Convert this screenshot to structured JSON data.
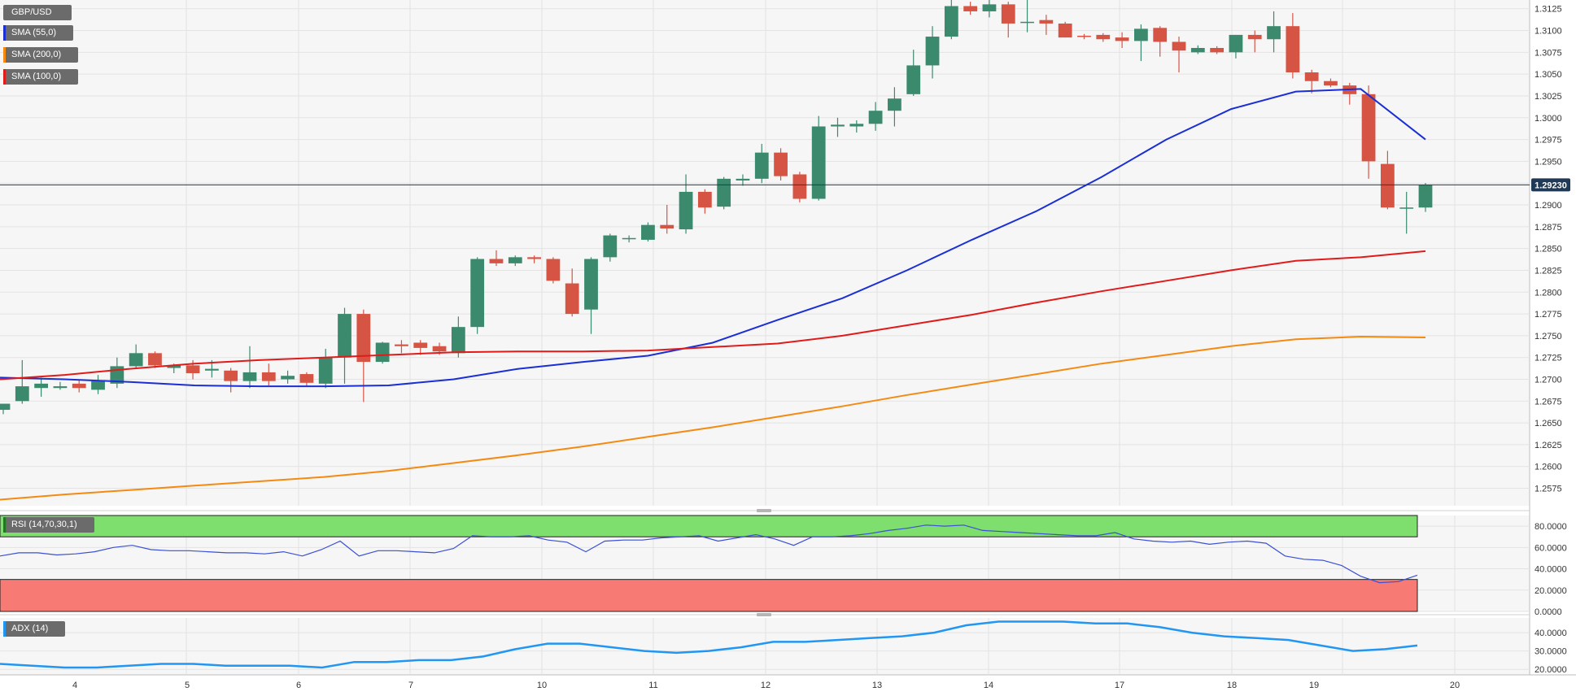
{
  "colors": {
    "bull": "#3b8a6e",
    "bear": "#d65444",
    "sma55": "#1a2fd4",
    "sma200": "#f48a12",
    "sma100": "#e11a1a",
    "rsi_line": "#3b50d4",
    "rsi_overbought": "#7ede6e",
    "rsi_oversold": "#f77b74",
    "adx_line": "#2196f3",
    "grid": "#e3e3e3",
    "plot_bg": "#f6f6f6",
    "price_tag_bg": "#1f3a57",
    "legend_bg": "#6b6b6b"
  },
  "legend": {
    "symbol": "GBP/USD",
    "sma55": "SMA (55,0)",
    "sma200": "SMA (200,0)",
    "sma100": "SMA (100,0)",
    "rsi": "RSI (14,70,30,1)",
    "adx": "ADX (14)"
  },
  "current_price_label": "1.29230",
  "x_axis": {
    "ticks": [
      "4",
      "5",
      "6",
      "7",
      "10",
      "11",
      "12",
      "13",
      "14",
      "17",
      "18",
      "19",
      "20"
    ]
  },
  "chart_data": [
    {
      "type": "candlestick",
      "title": "GBP/USD",
      "timeframe_note": "",
      "ylim": [
        1.2555,
        1.3135
      ],
      "y_ticks": [
        1.2575,
        1.26,
        1.2625,
        1.265,
        1.2675,
        1.27,
        1.2725,
        1.275,
        1.2775,
        1.28,
        1.2825,
        1.285,
        1.2875,
        1.29,
        1.2925,
        1.295,
        1.2975,
        1.3,
        1.3025,
        1.305,
        1.3075,
        1.31,
        1.3125
      ],
      "y_tick_labels": [
        "1.2575",
        "1.2600",
        "1.2625",
        "1.2650",
        "1.2675",
        "1.2700",
        "1.2725",
        "1.2750",
        "1.2775",
        "1.2800",
        "1.2825",
        "1.2850",
        "1.2875",
        "1.2900",
        "1.2925",
        "1.2950",
        "1.2975",
        "1.3000",
        "1.3025",
        "1.3050",
        "1.3075",
        "1.3100",
        "1.3125"
      ],
      "current_price": 1.2923,
      "candles": [
        {
          "o": 1.2665,
          "h": 1.2672,
          "l": 1.266,
          "c": 1.2672
        },
        {
          "o": 1.2675,
          "h": 1.2722,
          "l": 1.2672,
          "c": 1.2692
        },
        {
          "o": 1.269,
          "h": 1.2702,
          "l": 1.268,
          "c": 1.2695
        },
        {
          "o": 1.269,
          "h": 1.2697,
          "l": 1.2688,
          "c": 1.2692
        },
        {
          "o": 1.2695,
          "h": 1.27,
          "l": 1.2685,
          "c": 1.269
        },
        {
          "o": 1.2688,
          "h": 1.2705,
          "l": 1.2683,
          "c": 1.2698
        },
        {
          "o": 1.2695,
          "h": 1.2725,
          "l": 1.269,
          "c": 1.2715
        },
        {
          "o": 1.2715,
          "h": 1.274,
          "l": 1.2712,
          "c": 1.273
        },
        {
          "o": 1.273,
          "h": 1.2732,
          "l": 1.2713,
          "c": 1.2716
        },
        {
          "o": 1.2713,
          "h": 1.2718,
          "l": 1.2707,
          "c": 1.2716
        },
        {
          "o": 1.2716,
          "h": 1.2722,
          "l": 1.27,
          "c": 1.2707
        },
        {
          "o": 1.271,
          "h": 1.2722,
          "l": 1.2702,
          "c": 1.2712
        },
        {
          "o": 1.271,
          "h": 1.2713,
          "l": 1.2685,
          "c": 1.2698
        },
        {
          "o": 1.2698,
          "h": 1.2738,
          "l": 1.269,
          "c": 1.2708
        },
        {
          "o": 1.2708,
          "h": 1.2718,
          "l": 1.2693,
          "c": 1.2698
        },
        {
          "o": 1.27,
          "h": 1.271,
          "l": 1.2695,
          "c": 1.2704
        },
        {
          "o": 1.2706,
          "h": 1.2708,
          "l": 1.2692,
          "c": 1.2696
        },
        {
          "o": 1.2695,
          "h": 1.2735,
          "l": 1.269,
          "c": 1.2725
        },
        {
          "o": 1.2725,
          "h": 1.2782,
          "l": 1.2695,
          "c": 1.2775
        },
        {
          "o": 1.2775,
          "h": 1.278,
          "l": 1.2674,
          "c": 1.272
        },
        {
          "o": 1.272,
          "h": 1.2743,
          "l": 1.2718,
          "c": 1.2742
        },
        {
          "o": 1.274,
          "h": 1.2745,
          "l": 1.273,
          "c": 1.2738
        },
        {
          "o": 1.2742,
          "h": 1.2745,
          "l": 1.2728,
          "c": 1.2736
        },
        {
          "o": 1.2738,
          "h": 1.2742,
          "l": 1.2728,
          "c": 1.2732
        },
        {
          "o": 1.273,
          "h": 1.2772,
          "l": 1.2725,
          "c": 1.276
        },
        {
          "o": 1.276,
          "h": 1.284,
          "l": 1.2752,
          "c": 1.2838
        },
        {
          "o": 1.2838,
          "h": 1.2848,
          "l": 1.283,
          "c": 1.2833
        },
        {
          "o": 1.2833,
          "h": 1.2842,
          "l": 1.283,
          "c": 1.284
        },
        {
          "o": 1.284,
          "h": 1.2842,
          "l": 1.2833,
          "c": 1.2838
        },
        {
          "o": 1.2838,
          "h": 1.284,
          "l": 1.281,
          "c": 1.2813
        },
        {
          "o": 1.281,
          "h": 1.2827,
          "l": 1.2772,
          "c": 1.2775
        },
        {
          "o": 1.278,
          "h": 1.284,
          "l": 1.2752,
          "c": 1.2838
        },
        {
          "o": 1.284,
          "h": 1.2867,
          "l": 1.2835,
          "c": 1.2865
        },
        {
          "o": 1.2862,
          "h": 1.2865,
          "l": 1.2857,
          "c": 1.2862
        },
        {
          "o": 1.286,
          "h": 1.288,
          "l": 1.2858,
          "c": 1.2877
        },
        {
          "o": 1.2877,
          "h": 1.29,
          "l": 1.2867,
          "c": 1.2873
        },
        {
          "o": 1.2872,
          "h": 1.2935,
          "l": 1.2867,
          "c": 1.2915
        },
        {
          "o": 1.2915,
          "h": 1.2918,
          "l": 1.289,
          "c": 1.2897
        },
        {
          "o": 1.2898,
          "h": 1.2932,
          "l": 1.2895,
          "c": 1.293
        },
        {
          "o": 1.2928,
          "h": 1.2935,
          "l": 1.2922,
          "c": 1.293
        },
        {
          "o": 1.293,
          "h": 1.297,
          "l": 1.2925,
          "c": 1.296
        },
        {
          "o": 1.296,
          "h": 1.2965,
          "l": 1.2928,
          "c": 1.2933
        },
        {
          "o": 1.2935,
          "h": 1.2938,
          "l": 1.2903,
          "c": 1.2907
        },
        {
          "o": 1.2907,
          "h": 1.3002,
          "l": 1.2905,
          "c": 1.299
        },
        {
          "o": 1.299,
          "h": 1.3,
          "l": 1.2978,
          "c": 1.2992
        },
        {
          "o": 1.299,
          "h": 1.2997,
          "l": 1.2983,
          "c": 1.2993
        },
        {
          "o": 1.2993,
          "h": 1.3018,
          "l": 1.2985,
          "c": 1.3008
        },
        {
          "o": 1.3008,
          "h": 1.3035,
          "l": 1.299,
          "c": 1.3022
        },
        {
          "o": 1.3027,
          "h": 1.3078,
          "l": 1.3025,
          "c": 1.306
        },
        {
          "o": 1.306,
          "h": 1.3105,
          "l": 1.3045,
          "c": 1.3093
        },
        {
          "o": 1.3093,
          "h": 1.3135,
          "l": 1.309,
          "c": 1.3128
        },
        {
          "o": 1.3128,
          "h": 1.3133,
          "l": 1.3118,
          "c": 1.3122
        },
        {
          "o": 1.3122,
          "h": 1.3135,
          "l": 1.3115,
          "c": 1.313
        },
        {
          "o": 1.313,
          "h": 1.3133,
          "l": 1.3092,
          "c": 1.3108
        },
        {
          "o": 1.311,
          "h": 1.3135,
          "l": 1.3098,
          "c": 1.311
        },
        {
          "o": 1.3112,
          "h": 1.3118,
          "l": 1.3095,
          "c": 1.3108
        },
        {
          "o": 1.3108,
          "h": 1.311,
          "l": 1.3092,
          "c": 1.3092
        },
        {
          "o": 1.3094,
          "h": 1.3096,
          "l": 1.309,
          "c": 1.3093
        },
        {
          "o": 1.3095,
          "h": 1.3097,
          "l": 1.3087,
          "c": 1.309
        },
        {
          "o": 1.3092,
          "h": 1.3098,
          "l": 1.308,
          "c": 1.3088
        },
        {
          "o": 1.3088,
          "h": 1.3107,
          "l": 1.3065,
          "c": 1.3102
        },
        {
          "o": 1.3103,
          "h": 1.3105,
          "l": 1.307,
          "c": 1.3087
        },
        {
          "o": 1.3087,
          "h": 1.3093,
          "l": 1.3052,
          "c": 1.3077
        },
        {
          "o": 1.3075,
          "h": 1.3083,
          "l": 1.3073,
          "c": 1.308
        },
        {
          "o": 1.308,
          "h": 1.3082,
          "l": 1.3073,
          "c": 1.3075
        },
        {
          "o": 1.3075,
          "h": 1.3095,
          "l": 1.3068,
          "c": 1.3095
        },
        {
          "o": 1.3095,
          "h": 1.31,
          "l": 1.3075,
          "c": 1.309
        },
        {
          "o": 1.309,
          "h": 1.3122,
          "l": 1.3075,
          "c": 1.3105
        },
        {
          "o": 1.3105,
          "h": 1.312,
          "l": 1.3045,
          "c": 1.3052
        },
        {
          "o": 1.3052,
          "h": 1.3055,
          "l": 1.3028,
          "c": 1.3042
        },
        {
          "o": 1.3042,
          "h": 1.3045,
          "l": 1.3035,
          "c": 1.3037
        },
        {
          "o": 1.3037,
          "h": 1.304,
          "l": 1.3015,
          "c": 1.3027
        },
        {
          "o": 1.3027,
          "h": 1.3037,
          "l": 1.293,
          "c": 1.295
        },
        {
          "o": 1.2947,
          "h": 1.2962,
          "l": 1.2895,
          "c": 1.2897
        },
        {
          "o": 1.2897,
          "h": 1.2915,
          "l": 1.2867,
          "c": 1.2897
        },
        {
          "o": 1.2897,
          "h": 1.2925,
          "l": 1.2892,
          "c": 1.2923
        }
      ],
      "series": [
        {
          "name": "SMA (55,0)",
          "values": [
            1.2702,
            1.27,
            1.2697,
            1.2693,
            1.2692,
            1.2692,
            1.2693,
            1.27,
            1.2712,
            1.272,
            1.2727,
            1.2742,
            1.2768,
            1.2793,
            1.2825,
            1.286,
            1.2893,
            1.2932,
            1.2975,
            1.301,
            1.303,
            1.3033,
            1.2975
          ]
        },
        {
          "name": "SMA (100,0)",
          "values": [
            1.27,
            1.2705,
            1.2712,
            1.2718,
            1.2722,
            1.2725,
            1.2728,
            1.2731,
            1.2732,
            1.2732,
            1.2733,
            1.2737,
            1.2741,
            1.275,
            1.2762,
            1.2774,
            1.2788,
            1.2801,
            1.2813,
            1.2825,
            1.2836,
            1.284,
            1.2847
          ]
        },
        {
          "name": "SMA (200,0)",
          "values": [
            1.2562,
            1.2568,
            1.2573,
            1.2578,
            1.2583,
            1.2588,
            1.2595,
            1.2604,
            1.2613,
            1.2623,
            1.2634,
            1.2645,
            1.2657,
            1.2669,
            1.2682,
            1.2694,
            1.2706,
            1.2718,
            1.2728,
            1.2738,
            1.2746,
            1.2749,
            1.2748
          ]
        }
      ]
    },
    {
      "type": "line",
      "title": "RSI (14,70,30,1)",
      "ylim": [
        0,
        90
      ],
      "y_ticks": [
        0,
        20,
        40,
        60,
        80
      ],
      "y_tick_labels": [
        "0.0000",
        "20.0000",
        "40.0000",
        "60.0000",
        "80.0000"
      ],
      "overbought": 70,
      "oversold": 30,
      "series": [
        {
          "name": "RSI (14,70,30,1)",
          "values": [
            52,
            55,
            55,
            53,
            54,
            56,
            60,
            62,
            58,
            57,
            57,
            56,
            55,
            55,
            54,
            56,
            52,
            58,
            66,
            52,
            57,
            57,
            56,
            55,
            59,
            71,
            70,
            70,
            71,
            67,
            65,
            56,
            66,
            67,
            67,
            69,
            70,
            71,
            66,
            69,
            72,
            68,
            62,
            70,
            70,
            71,
            73,
            76,
            78,
            81,
            80,
            81,
            76,
            75,
            74,
            73,
            72,
            71,
            71,
            74,
            68,
            66,
            65,
            66,
            63,
            65,
            66,
            64,
            52,
            49,
            48,
            43,
            33,
            27,
            28,
            34
          ]
        }
      ]
    },
    {
      "type": "line",
      "title": "ADX (14)",
      "ylim": [
        17,
        48
      ],
      "y_ticks": [
        20,
        30,
        40
      ],
      "y_tick_labels": [
        "20.0000",
        "30.0000",
        "40.0000"
      ],
      "series": [
        {
          "name": "ADX (14)",
          "values": [
            23,
            22,
            21,
            21,
            22,
            23,
            23,
            22,
            22,
            22,
            21,
            24,
            24,
            25,
            25,
            27,
            31,
            34,
            34,
            32,
            30,
            29,
            30,
            32,
            35,
            35,
            36,
            37,
            38,
            40,
            44,
            46,
            46,
            46,
            45,
            45,
            43,
            40,
            38,
            37,
            36,
            33,
            30,
            31,
            33
          ]
        }
      ]
    }
  ]
}
